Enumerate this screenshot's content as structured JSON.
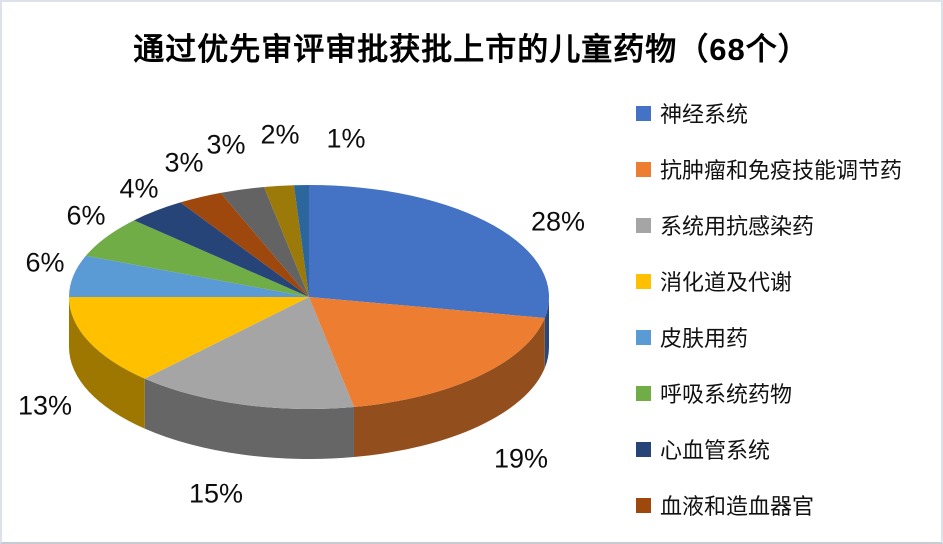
{
  "chart_data": {
    "type": "pie",
    "effect": "3d",
    "title": "通过优先审评审批获批上市的儿童药物（68个）",
    "total_items": 68,
    "legend_position": "right",
    "grid": false,
    "slices": [
      {
        "label": "神经系统",
        "value": 28,
        "display": "28%",
        "color": "#4472C4",
        "in_legend": true
      },
      {
        "label": "抗肿瘤和免疫技能调节药",
        "value": 19,
        "display": "19%",
        "color": "#ED7D31",
        "in_legend": true
      },
      {
        "label": "系统用抗感染药",
        "value": 15,
        "display": "15%",
        "color": "#A5A5A5",
        "in_legend": true
      },
      {
        "label": "消化道及代谢",
        "value": 13,
        "display": "13%",
        "color": "#FFC000",
        "in_legend": true
      },
      {
        "label": "皮肤用药",
        "value": 6,
        "display": "6%",
        "color": "#5B9BD5",
        "in_legend": true
      },
      {
        "label": "呼吸系统药物",
        "value": 6,
        "display": "6%",
        "color": "#70AD47",
        "in_legend": true
      },
      {
        "label": "心血管系统",
        "value": 4,
        "display": "4%",
        "color": "#264478",
        "in_legend": true
      },
      {
        "label": "血液和造血器官",
        "value": 3,
        "display": "3%",
        "color": "#9E480E",
        "in_legend": true
      },
      {
        "label": "",
        "value": 3,
        "display": "3%",
        "color": "#636363",
        "in_legend": false
      },
      {
        "label": "",
        "value": 2,
        "display": "2%",
        "color": "#9C7A0A",
        "in_legend": false
      },
      {
        "label": "",
        "value": 1,
        "display": "1%",
        "color": "#2B669C",
        "in_legend": false
      }
    ]
  }
}
